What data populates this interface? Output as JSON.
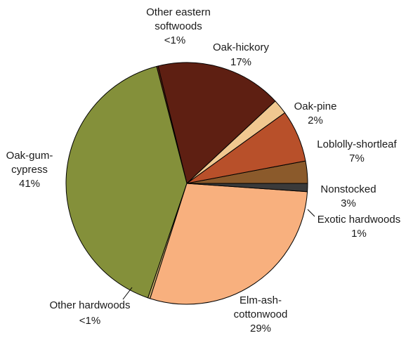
{
  "chart_data": {
    "type": "pie",
    "title": "",
    "start_angle_deg": 0,
    "direction": "counterclockwise",
    "slices": [
      {
        "name": "Nonstocked",
        "label_line1": "Nonstocked",
        "label_line2": "3%",
        "value": 3,
        "color": "#8B5A2B"
      },
      {
        "name": "Loblolly-shortleaf",
        "label_line1": "Loblolly-shortleaf",
        "label_line2": "7%",
        "value": 7,
        "color": "#B8502A"
      },
      {
        "name": "Oak-pine",
        "label_line1": "Oak-pine",
        "label_line2": "2%",
        "value": 2,
        "color": "#F0C890"
      },
      {
        "name": "Oak-hickory",
        "label_line1": "Oak-hickory",
        "label_line2": "17%",
        "value": 17,
        "color": "#5E1F12"
      },
      {
        "name": "Other eastern softwoods",
        "label_line0": "Other eastern",
        "label_line1": "softwoods",
        "label_line2": "<1%",
        "value": 0.2,
        "color": "#6E2A14"
      },
      {
        "name": "Oak-gum-cypress",
        "label_line1": "Oak-gum-",
        "label_line1b": "cypress",
        "label_line2": "41%",
        "value": 41,
        "color": "#84903A"
      },
      {
        "name": "Other hardwoods",
        "label_line1": "Other hardwoods",
        "label_line2": "<1%",
        "value": 0.3,
        "color": "#C9AD6A"
      },
      {
        "name": "Elm-ash-cottonwood",
        "label_line0": "Elm-ash-",
        "label_line1": "cottonwood",
        "label_line2": "29%",
        "value": 29,
        "color": "#F8B07E"
      },
      {
        "name": "Exotic hardwoods",
        "label_line1": "Exotic hardwoods",
        "label_line2": "1%",
        "value": 1.1,
        "color": "#3A3A3A"
      }
    ]
  }
}
